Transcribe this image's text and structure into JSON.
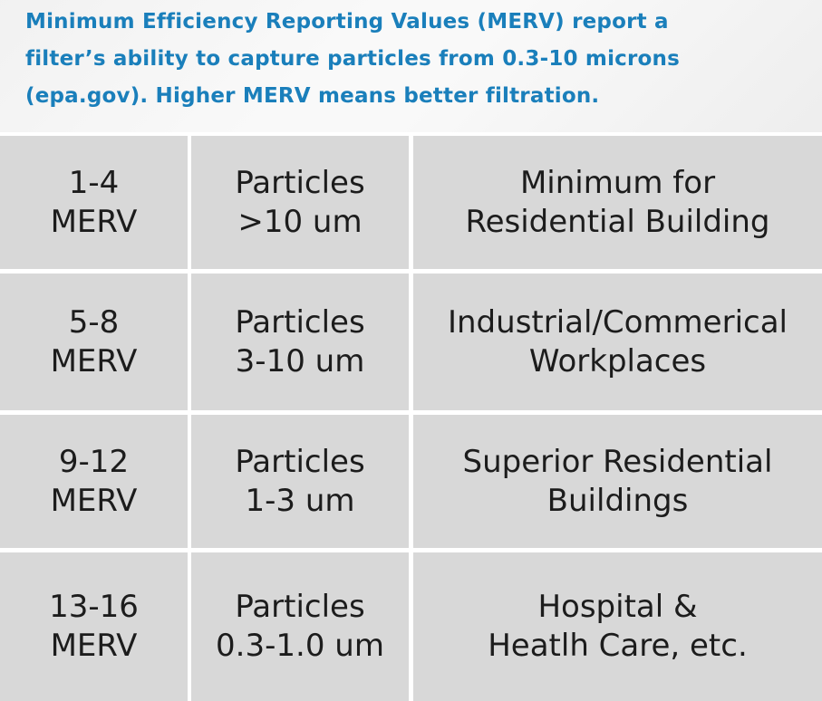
{
  "intro": {
    "line1": "Minimum Efficiency Reporting Values (MERV) report a",
    "line2": "filter’s ability to capture particles from 0.3-10 microns",
    "line3": "(epa.gov). Higher MERV means better filtration."
  },
  "rows": [
    {
      "rating": [
        "1-4",
        "MERV"
      ],
      "particles": [
        "Particles",
        ">10 um"
      ],
      "use": [
        "Minimum for",
        "Residential Building"
      ]
    },
    {
      "rating": [
        "5-8",
        "MERV"
      ],
      "particles": [
        "Particles",
        "3-10 um"
      ],
      "use": [
        "Industrial/Commerical",
        "Workplaces"
      ]
    },
    {
      "rating": [
        "9-12",
        "MERV"
      ],
      "particles": [
        "Particles",
        "1-3 um"
      ],
      "use": [
        "Superior Residential",
        "Buildings"
      ]
    },
    {
      "rating": [
        "13-16",
        "MERV"
      ],
      "particles": [
        "Particles",
        "0.3-1.0 um"
      ],
      "use": [
        "Hospital &",
        "Heatlh Care, etc."
      ]
    }
  ]
}
